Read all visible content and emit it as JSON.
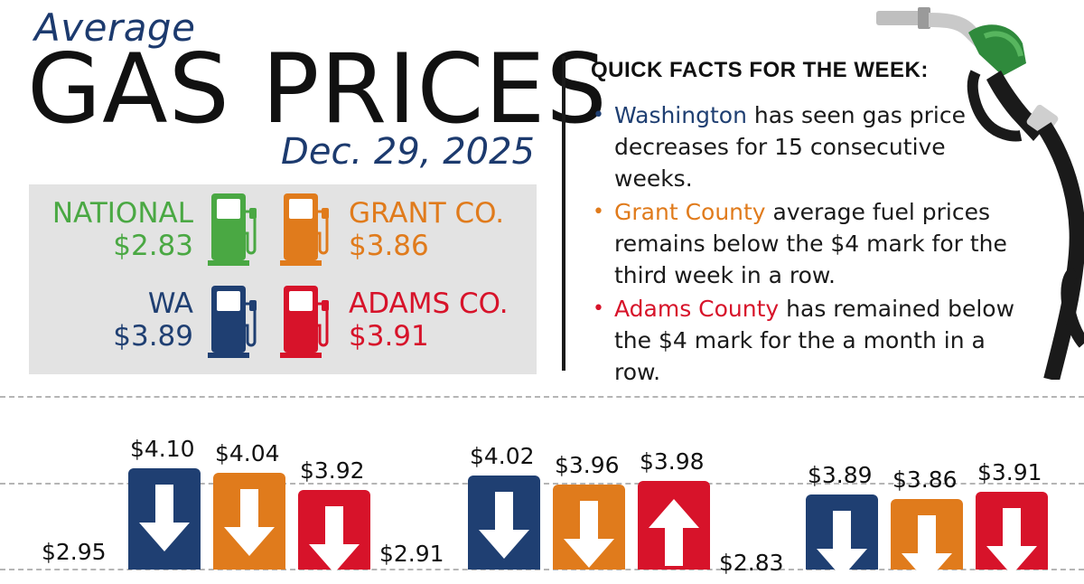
{
  "header": {
    "subtitle": "Average",
    "title": "GAS PRICES",
    "date": "Dec. 29, 2025"
  },
  "prices": [
    {
      "label": "NATIONAL",
      "value": "$2.83",
      "color": "#4aa843"
    },
    {
      "label": "GRANT CO.",
      "value": "$3.86",
      "color": "#e07b1c"
    },
    {
      "label": "WA",
      "value": "$3.89",
      "color": "#1f3f72"
    },
    {
      "label": "ADAMS CO.",
      "value": "$3.91",
      "color": "#d7132a"
    }
  ],
  "facts": {
    "title": "QUICK FACTS FOR THE WEEK:",
    "items": [
      {
        "highlight": "Washington",
        "text": " has seen gas price decreases for 15 consecutive weeks.",
        "color": "#1f3f72"
      },
      {
        "highlight": "Grant County",
        "text": " average fuel prices remains below the $4 mark for the third week in a row.",
        "color": "#e07b1c"
      },
      {
        "highlight": "Adams County",
        "text": " has remained below the $4 mark for the a month in a row.",
        "color": "#d7132a"
      }
    ]
  },
  "chart_data": {
    "type": "bar",
    "groups": [
      {
        "base_label": "$2.95",
        "bars": [
          {
            "value": 4.1,
            "label": "$4.10",
            "direction": "down",
            "color": "#1f3f72"
          },
          {
            "value": 4.04,
            "label": "$4.04",
            "direction": "down",
            "color": "#e07b1c"
          },
          {
            "value": 3.92,
            "label": "$3.92",
            "direction": "down",
            "color": "#d7132a"
          }
        ]
      },
      {
        "base_label": "$2.91",
        "bars": [
          {
            "value": 4.02,
            "label": "$4.02",
            "direction": "down",
            "color": "#1f3f72"
          },
          {
            "value": 3.96,
            "label": "$3.96",
            "direction": "down",
            "color": "#e07b1c"
          },
          {
            "value": 3.98,
            "label": "$3.98",
            "direction": "up",
            "color": "#d7132a"
          }
        ]
      },
      {
        "base_label": "$2.83",
        "bars": [
          {
            "value": 3.89,
            "label": "$3.89",
            "direction": "down",
            "color": "#1f3f72"
          },
          {
            "value": 3.86,
            "label": "$3.86",
            "direction": "down",
            "color": "#e07b1c"
          },
          {
            "value": 3.91,
            "label": "$3.91",
            "direction": "down",
            "color": "#d7132a"
          }
        ]
      }
    ]
  }
}
